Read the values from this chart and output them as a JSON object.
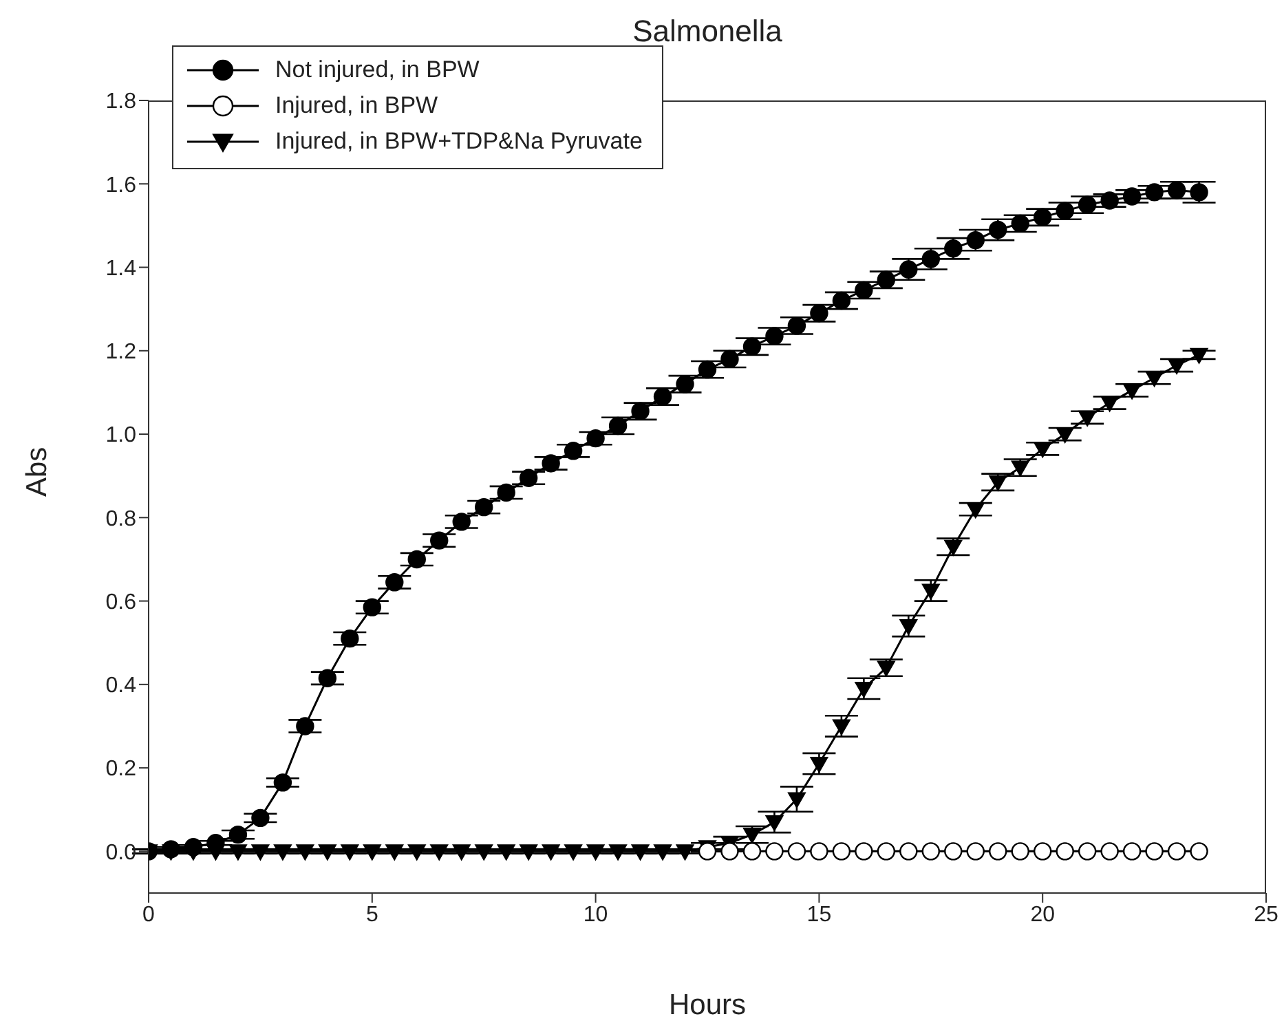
{
  "chart_data": {
    "type": "line",
    "title": "Salmonella",
    "xlabel": "Hours",
    "ylabel": "Abs",
    "x": [
      0,
      0.5,
      1,
      1.5,
      2,
      2.5,
      3,
      3.5,
      4,
      4.5,
      5,
      5.5,
      6,
      6.5,
      7,
      7.5,
      8,
      8.5,
      9,
      9.5,
      10,
      10.5,
      11,
      11.5,
      12,
      12.5,
      13,
      13.5,
      14,
      14.5,
      15,
      15.5,
      16,
      16.5,
      17,
      17.5,
      18,
      18.5,
      19,
      19.5,
      20,
      20.5,
      21,
      21.5,
      22,
      22.5,
      23,
      23.5
    ],
    "series": [
      {
        "name": "Not injured, in BPW",
        "color": "#000000",
        "marker": "circle",
        "values": [
          0.0,
          0.005,
          0.01,
          0.02,
          0.04,
          0.08,
          0.165,
          0.3,
          0.415,
          0.51,
          0.585,
          0.645,
          0.7,
          0.745,
          0.79,
          0.825,
          0.86,
          0.895,
          0.93,
          0.96,
          0.99,
          1.02,
          1.055,
          1.09,
          1.12,
          1.155,
          1.18,
          1.21,
          1.235,
          1.26,
          1.29,
          1.32,
          1.345,
          1.37,
          1.395,
          1.42,
          1.445,
          1.465,
          1.49,
          1.505,
          1.52,
          1.535,
          1.55,
          1.56,
          1.57,
          1.58,
          1.585,
          1.58
        ],
        "errors": [
          0.005,
          0.005,
          0.005,
          0.005,
          0.01,
          0.01,
          0.01,
          0.015,
          0.015,
          0.015,
          0.015,
          0.015,
          0.015,
          0.015,
          0.015,
          0.015,
          0.015,
          0.015,
          0.015,
          0.015,
          0.015,
          0.02,
          0.02,
          0.02,
          0.02,
          0.02,
          0.02,
          0.02,
          0.02,
          0.02,
          0.02,
          0.02,
          0.02,
          0.02,
          0.025,
          0.025,
          0.025,
          0.025,
          0.025,
          0.02,
          0.02,
          0.02,
          0.02,
          0.015,
          0.015,
          0.015,
          0.02,
          0.025
        ]
      },
      {
        "name": "Injured, in BPW",
        "color": "#000000",
        "marker": "circle",
        "values": [
          null,
          null,
          null,
          null,
          null,
          null,
          null,
          null,
          null,
          null,
          null,
          null,
          null,
          null,
          null,
          null,
          null,
          null,
          null,
          null,
          null,
          null,
          null,
          null,
          null,
          0,
          0,
          0,
          0,
          0,
          0,
          0,
          0,
          0,
          0,
          0,
          0,
          0,
          0,
          0,
          0,
          0,
          0,
          0,
          0,
          0,
          0,
          0
        ]
      },
      {
        "name": "Injured, in BPW+TDP&Na Pyruvate",
        "color": "#000000",
        "marker": "triangle",
        "values": [
          0,
          0,
          0,
          0,
          0,
          0,
          0,
          0,
          0,
          0,
          0,
          0,
          0,
          0,
          0,
          0,
          0,
          0,
          0,
          0,
          0,
          0,
          0,
          0,
          0,
          0.01,
          0.02,
          0.04,
          0.07,
          0.125,
          0.21,
          0.3,
          0.39,
          0.44,
          0.54,
          0.625,
          0.73,
          0.82,
          0.885,
          0.92,
          0.965,
          1.0,
          1.04,
          1.075,
          1.105,
          1.135,
          1.165,
          1.19
        ],
        "errors": [
          0.005,
          0.005,
          0.005,
          0.005,
          0.005,
          0.005,
          0.005,
          0.005,
          0.005,
          0.005,
          0.005,
          0.005,
          0.005,
          0.005,
          0.005,
          0.005,
          0.005,
          0.005,
          0.005,
          0.005,
          0.005,
          0.005,
          0.005,
          0.005,
          0.005,
          0.01,
          0.015,
          0.02,
          0.025,
          0.03,
          0.025,
          0.025,
          0.025,
          0.02,
          0.025,
          0.025,
          0.02,
          0.015,
          0.02,
          0.02,
          0.015,
          0.015,
          0.015,
          0.015,
          0.015,
          0.015,
          0.015,
          0.01
        ]
      }
    ],
    "xlim": [
      0,
      25
    ],
    "xticks": [
      0,
      5,
      10,
      15,
      20,
      25
    ],
    "ylim": [
      -0.1,
      1.8
    ],
    "yticks": [
      {
        "value": 0,
        "label": "0.0"
      },
      0.2,
      0.4,
      0.6,
      0.8,
      {
        "value": 1,
        "label": "1.0"
      },
      1.2,
      1.4,
      1.6,
      1.8
    ],
    "legend": "top left",
    "line_style": "solid"
  }
}
